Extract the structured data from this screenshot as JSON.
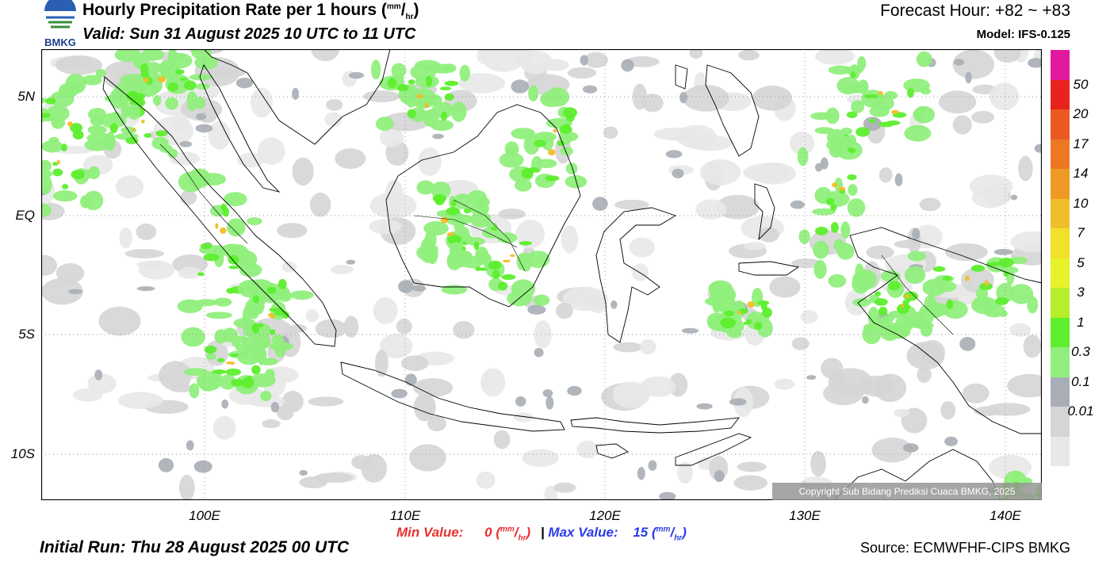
{
  "header": {
    "title_prefix": "Hourly Precipitation Rate per 1 hours (",
    "title_unit_num": "mm",
    "title_unit_den": "hr",
    "title_suffix": ")",
    "valid": "Valid: Sun 31 August 2025 10 UTC to 11 UTC",
    "forecast_hour": "Forecast Hour: +82 ~ +83",
    "model": "Model: IFS-0.125",
    "logo_text": "BMKG"
  },
  "axes": {
    "lon_labels": [
      "100E",
      "110E",
      "120E",
      "130E",
      "140E"
    ],
    "lat_labels": [
      "5N",
      "EQ",
      "5S",
      "10S"
    ]
  },
  "colorbar": {
    "labels": [
      "50",
      "20",
      "17",
      "14",
      "10",
      "7",
      "5",
      "3",
      "1",
      "0.3",
      "0.1",
      "0.01"
    ],
    "colors": [
      "#ffffff",
      "#e2199f",
      "#e8231e",
      "#ea5a21",
      "#ed7722",
      "#ee9a25",
      "#f0be28",
      "#f2e12b",
      "#e6f22a",
      "#b6ee2c",
      "#5dee2d",
      "#90ef7c",
      "#a9aeb6",
      "#d5d5d5",
      "#e8e8e8"
    ]
  },
  "footer": {
    "min_label": "Min Value:",
    "min_value": "0",
    "separator": "|",
    "max_label": "Max Value:",
    "max_value": "15",
    "unit_num": "mm",
    "unit_den": "hr",
    "initial_run": "Initial Run: Thu 28 August 2025 00 UTC",
    "source": "Source: ECMWFHF-CIPS BMKG",
    "copyright": "Copyright Sub Bidang Prediksi Cuaca BMKG, 2025"
  },
  "map": {
    "precip_colors": {
      "trace": "#e8e8e8",
      "light": "#d5d5d5",
      "low": "#a9aeb6",
      "moderate": "#90ef7c",
      "heavy": "#5dee2d",
      "intense": "#f0be28"
    }
  }
}
